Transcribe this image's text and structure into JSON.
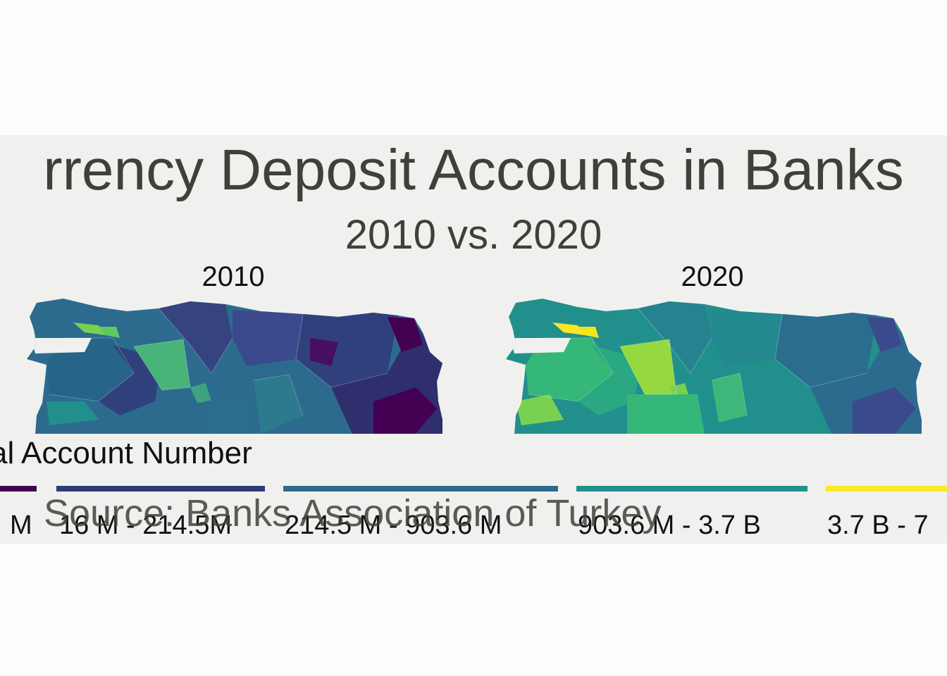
{
  "title": "rrency Deposit Accounts in Banks",
  "subtitle": "2010 vs. 2020",
  "facets": [
    {
      "label": "2010"
    },
    {
      "label": "2020"
    }
  ],
  "legend": {
    "title": "al Account Number",
    "items": [
      {
        "label": "M",
        "color": "#440154"
      },
      {
        "label": "16 M - 214.5M",
        "color": "#3b4a8c"
      },
      {
        "label": "214.5 M - 903.6 M",
        "color": "#2c6b8e"
      },
      {
        "label": "903.6 M - 3.7 B",
        "color": "#21908c"
      },
      {
        "label": "3.7 B - 7",
        "color": "#fde725"
      }
    ]
  },
  "caption": "Source: Banks Association of Turkey",
  "colors": {
    "panel_background": "#f0f1ee",
    "text": "#3f3f3b"
  }
}
